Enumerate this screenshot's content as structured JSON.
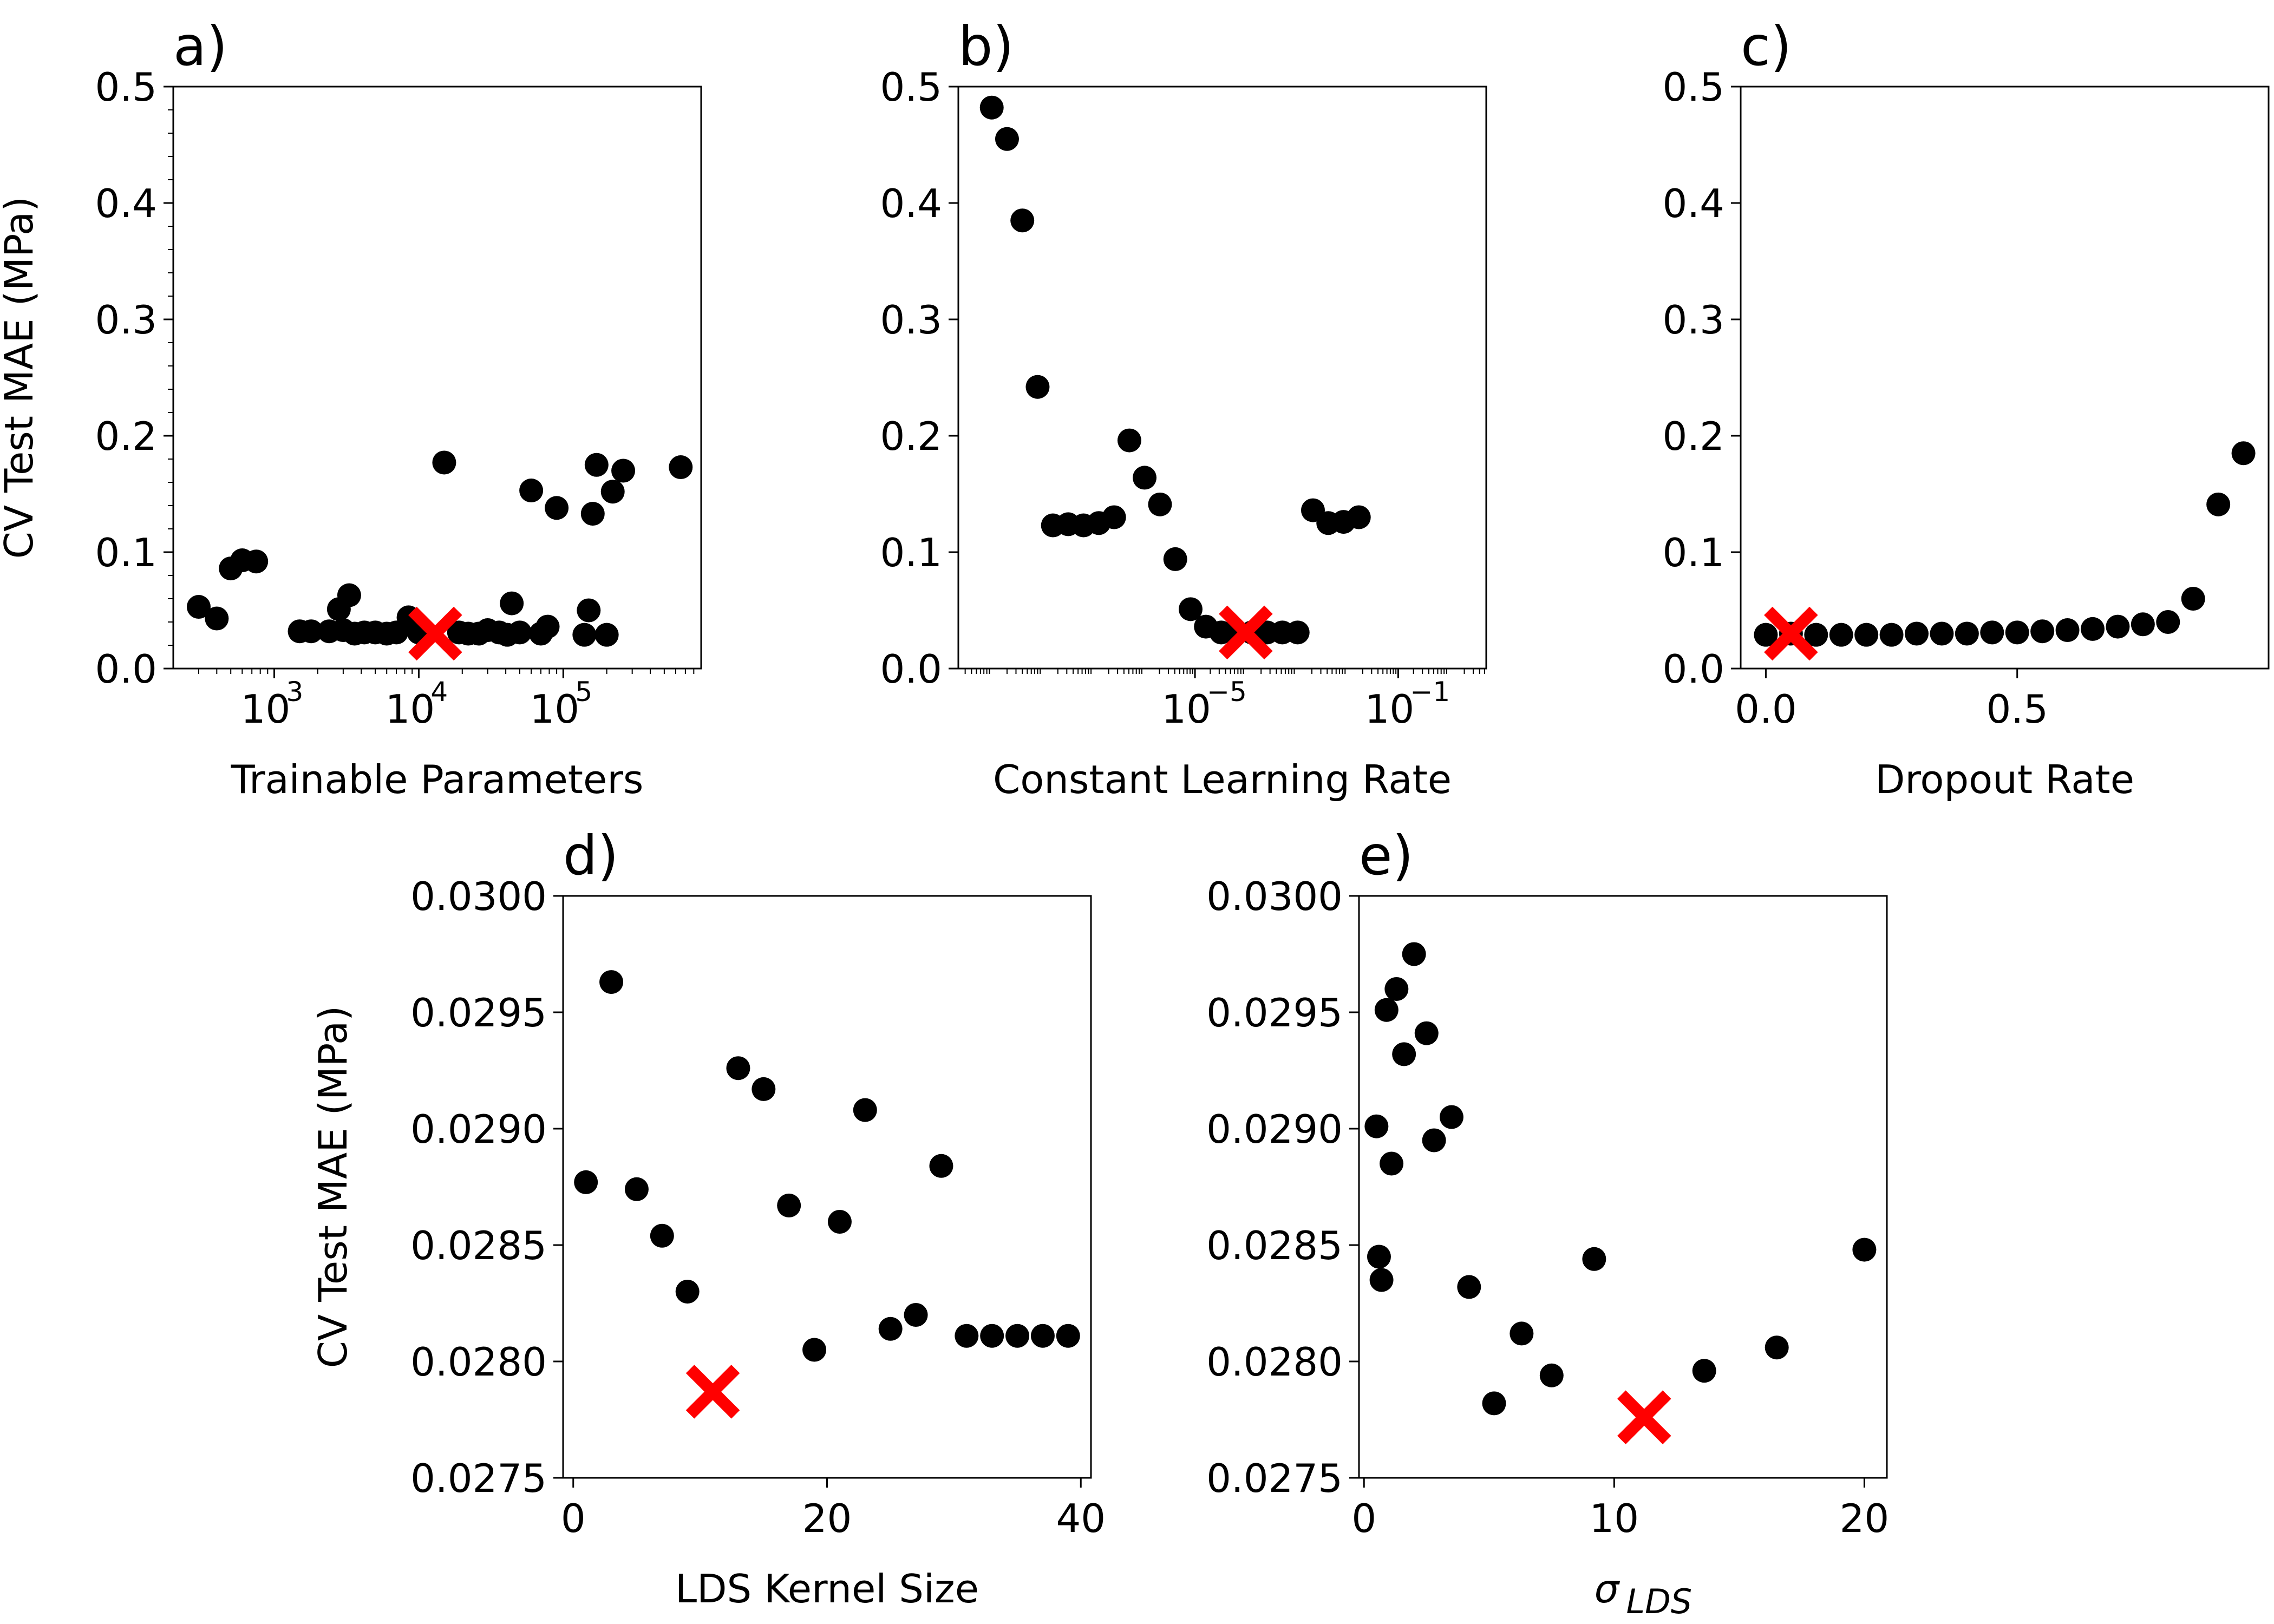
{
  "colors": {
    "point": "#000000",
    "best": "#ff0000",
    "axis": "#000000"
  },
  "chart_data": [
    {
      "id": "a",
      "panel_label": "a)",
      "type": "scatter",
      "xscale": "log",
      "xlim": [
        200,
        900000
      ],
      "ylim": [
        0,
        0.5
      ],
      "xlabel": "Trainable Parameters",
      "ylabel": "CV Test MAE (MPa)",
      "xticks": [
        {
          "value": 1000,
          "base": "10",
          "exp": "3"
        },
        {
          "value": 10000,
          "base": "10",
          "exp": "4"
        },
        {
          "value": 100000,
          "base": "10",
          "exp": "5"
        }
      ],
      "yticks": [
        {
          "value": 0.0,
          "label": "0.0"
        },
        {
          "value": 0.1,
          "label": "0.1"
        },
        {
          "value": 0.2,
          "label": "0.2"
        },
        {
          "value": 0.3,
          "label": "0.3"
        },
        {
          "value": 0.4,
          "label": "0.4"
        },
        {
          "value": 0.5,
          "label": "0.5"
        }
      ],
      "yminor": true,
      "points": [
        [
          300,
          0.053
        ],
        [
          400,
          0.043
        ],
        [
          500,
          0.086
        ],
        [
          600,
          0.093
        ],
        [
          750,
          0.092
        ],
        [
          1500,
          0.032
        ],
        [
          1800,
          0.032
        ],
        [
          2400,
          0.032
        ],
        [
          2800,
          0.051
        ],
        [
          3000,
          0.033
        ],
        [
          3300,
          0.063
        ],
        [
          3600,
          0.03
        ],
        [
          4200,
          0.031
        ],
        [
          5000,
          0.031
        ],
        [
          6000,
          0.03
        ],
        [
          7000,
          0.031
        ],
        [
          8500,
          0.044
        ],
        [
          10000,
          0.031
        ],
        [
          15000,
          0.177
        ],
        [
          19000,
          0.031
        ],
        [
          22000,
          0.03
        ],
        [
          26000,
          0.03
        ],
        [
          30000,
          0.033
        ],
        [
          36000,
          0.031
        ],
        [
          41000,
          0.029
        ],
        [
          44000,
          0.056
        ],
        [
          50000,
          0.031
        ],
        [
          60000,
          0.153
        ],
        [
          70000,
          0.03
        ],
        [
          78000,
          0.036
        ],
        [
          90000,
          0.138
        ],
        [
          140000,
          0.029
        ],
        [
          150000,
          0.05
        ],
        [
          160000,
          0.133
        ],
        [
          170000,
          0.175
        ],
        [
          200000,
          0.029
        ],
        [
          220000,
          0.152
        ],
        [
          260000,
          0.17
        ],
        [
          650000,
          0.173
        ]
      ],
      "best": [
        13000,
        0.03
      ]
    },
    {
      "id": "b",
      "panel_label": "b)",
      "type": "scatter",
      "xscale": "log",
      "xlim": [
        2.2e-10,
        5.4
      ],
      "ylim": [
        0,
        0.5
      ],
      "xlabel": "Constant Learning Rate",
      "ylabel": "",
      "xticks": [
        {
          "value": 1e-05,
          "base": "10",
          "exp": "−5"
        },
        {
          "value": 0.1,
          "base": "10",
          "exp": "−1"
        }
      ],
      "yticks": [
        {
          "value": 0.0,
          "label": "0.0"
        },
        {
          "value": 0.1,
          "label": "0.1"
        },
        {
          "value": 0.2,
          "label": "0.2"
        },
        {
          "value": 0.3,
          "label": "0.3"
        },
        {
          "value": 0.4,
          "label": "0.4"
        },
        {
          "value": 0.5,
          "label": "0.5"
        }
      ],
      "yminor": false,
      "points": [
        [
          1e-09,
          0.482
        ],
        [
          2e-09,
          0.455
        ],
        [
          4e-09,
          0.385
        ],
        [
          8e-09,
          0.242
        ],
        [
          1.6e-08,
          0.123
        ],
        [
          3.2e-08,
          0.124
        ],
        [
          6.4e-08,
          0.123
        ],
        [
          1.28e-07,
          0.125
        ],
        [
          2.56e-07,
          0.13
        ],
        [
          5.12e-07,
          0.196
        ],
        [
          1.02e-06,
          0.164
        ],
        [
          2.05e-06,
          0.141
        ],
        [
          4.1e-06,
          0.094
        ],
        [
          8.2e-06,
          0.051
        ],
        [
          1.64e-05,
          0.036
        ],
        [
          3.28e-05,
          0.031
        ],
        [
          6.55e-05,
          0.031
        ],
        [
          0.000131,
          0.031
        ],
        [
          0.000262,
          0.031
        ],
        [
          0.000524,
          0.031
        ],
        [
          0.00105,
          0.031
        ],
        [
          0.0021,
          0.136
        ],
        [
          0.0042,
          0.125
        ],
        [
          0.0084,
          0.126
        ],
        [
          0.0168,
          0.13
        ]
      ],
      "best": [
        0.0001,
        0.031
      ]
    },
    {
      "id": "c",
      "panel_label": "c)",
      "type": "scatter",
      "xscale": "linear",
      "xlim": [
        -0.05,
        1.0
      ],
      "ylim": [
        0,
        0.5
      ],
      "xlabel": "Dropout Rate",
      "ylabel": "",
      "xticks": [
        {
          "value": 0.0,
          "label": "0.0"
        },
        {
          "value": 0.5,
          "label": "0.5"
        }
      ],
      "yticks": [
        {
          "value": 0.0,
          "label": "0.0"
        },
        {
          "value": 0.1,
          "label": "0.1"
        },
        {
          "value": 0.2,
          "label": "0.2"
        },
        {
          "value": 0.3,
          "label": "0.3"
        },
        {
          "value": 0.4,
          "label": "0.4"
        },
        {
          "value": 0.5,
          "label": "0.5"
        }
      ],
      "yminor": false,
      "points": [
        [
          0.0,
          0.029
        ],
        [
          0.05,
          0.03
        ],
        [
          0.1,
          0.029
        ],
        [
          0.15,
          0.029
        ],
        [
          0.2,
          0.029
        ],
        [
          0.25,
          0.029
        ],
        [
          0.3,
          0.03
        ],
        [
          0.35,
          0.03
        ],
        [
          0.4,
          0.03
        ],
        [
          0.45,
          0.031
        ],
        [
          0.5,
          0.031
        ],
        [
          0.55,
          0.032
        ],
        [
          0.6,
          0.033
        ],
        [
          0.65,
          0.034
        ],
        [
          0.7,
          0.036
        ],
        [
          0.75,
          0.038
        ],
        [
          0.8,
          0.04
        ],
        [
          0.85,
          0.06
        ],
        [
          0.9,
          0.141
        ],
        [
          0.95,
          0.185
        ]
      ],
      "best": [
        0.05,
        0.03
      ]
    },
    {
      "id": "d",
      "panel_label": "d)",
      "type": "scatter",
      "xscale": "linear",
      "xlim": [
        -0.8,
        40.8
      ],
      "ylim": [
        0.0275,
        0.03
      ],
      "xlabel": "LDS Kernel Size",
      "ylabel": "CV Test MAE (MPa)",
      "xticks": [
        {
          "value": 0,
          "label": "0"
        },
        {
          "value": 20,
          "label": "20"
        },
        {
          "value": 40,
          "label": "40"
        }
      ],
      "yticks": [
        {
          "value": 0.0275,
          "label": "0.0275"
        },
        {
          "value": 0.028,
          "label": "0.0280"
        },
        {
          "value": 0.0285,
          "label": "0.0285"
        },
        {
          "value": 0.029,
          "label": "0.0290"
        },
        {
          "value": 0.0295,
          "label": "0.0295"
        },
        {
          "value": 0.03,
          "label": "0.0300"
        }
      ],
      "yminor": false,
      "points": [
        [
          1,
          0.02877
        ],
        [
          3,
          0.02963
        ],
        [
          5,
          0.02874
        ],
        [
          7,
          0.02854
        ],
        [
          9,
          0.0283
        ],
        [
          13,
          0.02926
        ],
        [
          15,
          0.02917
        ],
        [
          17,
          0.02867
        ],
        [
          19,
          0.02805
        ],
        [
          21,
          0.0286
        ],
        [
          23,
          0.02908
        ],
        [
          25,
          0.02814
        ],
        [
          27,
          0.0282
        ],
        [
          29,
          0.02884
        ],
        [
          31,
          0.02811
        ],
        [
          33,
          0.02811
        ],
        [
          35,
          0.02811
        ],
        [
          37,
          0.02811
        ],
        [
          39,
          0.02811
        ]
      ],
      "best": [
        11,
        0.02787
      ]
    },
    {
      "id": "e",
      "panel_label": "e)",
      "type": "scatter",
      "xscale": "linear",
      "xlim": [
        -0.2,
        20.9
      ],
      "ylim": [
        0.0275,
        0.03
      ],
      "xlabel": "σ",
      "xlabel_sub": "LDS",
      "ylabel": "",
      "xticks": [
        {
          "value": 0,
          "label": "0"
        },
        {
          "value": 10,
          "label": "10"
        },
        {
          "value": 20,
          "label": "20"
        }
      ],
      "yticks": [
        {
          "value": 0.0275,
          "label": "0.0275"
        },
        {
          "value": 0.028,
          "label": "0.0280"
        },
        {
          "value": 0.0285,
          "label": "0.0285"
        },
        {
          "value": 0.029,
          "label": "0.0290"
        },
        {
          "value": 0.0295,
          "label": "0.0295"
        },
        {
          "value": 0.03,
          "label": "0.0300"
        }
      ],
      "yminor": false,
      "points": [
        [
          0.5,
          0.02901
        ],
        [
          0.6,
          0.02845
        ],
        [
          0.7,
          0.02835
        ],
        [
          0.9,
          0.02951
        ],
        [
          1.1,
          0.02885
        ],
        [
          1.3,
          0.0296
        ],
        [
          1.6,
          0.02932
        ],
        [
          2.0,
          0.02975
        ],
        [
          2.5,
          0.02941
        ],
        [
          2.8,
          0.02895
        ],
        [
          3.5,
          0.02905
        ],
        [
          4.2,
          0.02832
        ],
        [
          5.2,
          0.02782
        ],
        [
          6.3,
          0.02812
        ],
        [
          7.5,
          0.02794
        ],
        [
          9.2,
          0.02844
        ],
        [
          13.6,
          0.02796
        ],
        [
          16.5,
          0.02806
        ],
        [
          20.0,
          0.02848
        ]
      ],
      "best": [
        11.2,
        0.02776
      ]
    }
  ]
}
